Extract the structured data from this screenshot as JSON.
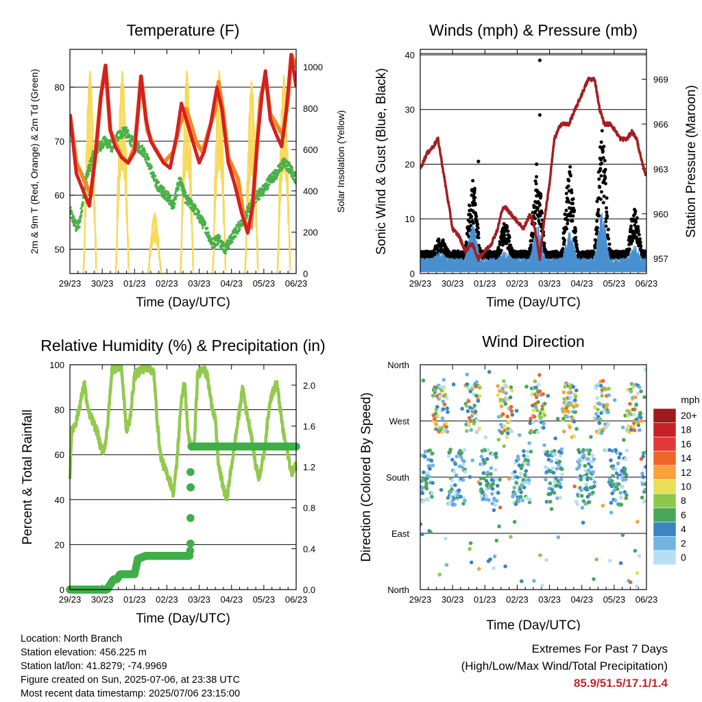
{
  "footer": {
    "location": "Location: North Branch",
    "elevation": "Station elevation: 456.225 m",
    "latlon": "Station lat/lon: 41.8279; -74.9969",
    "created": "Figure created on Sun, 2025-07-06, at 23:38 UTC",
    "recent": "Most recent data timestamp: 2025/07/06 23:15:00"
  },
  "extremes": {
    "line1": "Extremes For Past 7 Days",
    "line2": "(High/Low/Max Wind/Total Precipitation)",
    "values": "85.9/51.5/17.1/1.4"
  },
  "x_ticks": [
    "29/23",
    "30/23",
    "01/23",
    "02/23",
    "03/23",
    "04/23",
    "05/23",
    "06/23"
  ],
  "chart_data": [
    {
      "id": "temperature",
      "type": "line",
      "title": "Temperature (F)",
      "xlabel": "Time (Day/UTC)",
      "ylabel": "2m & 9m T (Red, Orange) & 2m Td (Green)",
      "y2label": "Solar Insolation (Yellow)",
      "ylim": [
        45.5,
        87
      ],
      "yticks": [
        50,
        60,
        70,
        80
      ],
      "y2lim": [
        0,
        1085
      ],
      "y2ticks": [
        0,
        200,
        400,
        600,
        800,
        1000
      ],
      "grid": true,
      "colors": {
        "t2m": "#d42023",
        "t9m": "#f08a24",
        "td": "#4bb04a",
        "solar": "#f7d95a"
      },
      "series": [
        {
          "key": "t9m",
          "values": [
            [
              0,
              75
            ],
            [
              0.2,
              66
            ],
            [
              0.5,
              62
            ],
            [
              0.65,
              60
            ],
            [
              0.8,
              68
            ],
            [
              0.95,
              78
            ],
            [
              1.1,
              84
            ],
            [
              1.25,
              72
            ],
            [
              1.6,
              67
            ],
            [
              1.8,
              66
            ],
            [
              2.0,
              69
            ],
            [
              2.1,
              75
            ],
            [
              2.2,
              82
            ],
            [
              2.4,
              72
            ],
            [
              2.6,
              69
            ],
            [
              2.9,
              66
            ],
            [
              3.2,
              68
            ],
            [
              3.4,
              73
            ],
            [
              3.6,
              76
            ],
            [
              3.7,
              74
            ],
            [
              3.9,
              70
            ],
            [
              4.1,
              68
            ],
            [
              4.3,
              72
            ],
            [
              4.5,
              76
            ],
            [
              4.6,
              81
            ],
            [
              4.75,
              75
            ],
            [
              4.9,
              67
            ],
            [
              5.2,
              63
            ],
            [
              5.4,
              55
            ],
            [
              5.6,
              54
            ],
            [
              5.75,
              66
            ],
            [
              5.9,
              78
            ],
            [
              6.05,
              82
            ],
            [
              6.2,
              75
            ],
            [
              6.4,
              73
            ],
            [
              6.6,
              71
            ],
            [
              6.75,
              78
            ],
            [
              6.85,
              86
            ],
            [
              7,
              84
            ]
          ]
        },
        {
          "key": "t2m",
          "values": [
            [
              0,
              75
            ],
            [
              0.2,
              64
            ],
            [
              0.4,
              61
            ],
            [
              0.6,
              58
            ],
            [
              0.8,
              68
            ],
            [
              0.95,
              78
            ],
            [
              1.1,
              84
            ],
            [
              1.25,
              72
            ],
            [
              1.4,
              69
            ],
            [
              1.6,
              67
            ],
            [
              1.8,
              66
            ],
            [
              2.0,
              68
            ],
            [
              2.1,
              75
            ],
            [
              2.2,
              82
            ],
            [
              2.35,
              74
            ],
            [
              2.5,
              70
            ],
            [
              2.7,
              68
            ],
            [
              2.9,
              66
            ],
            [
              3.1,
              65
            ],
            [
              3.3,
              71
            ],
            [
              3.45,
              77
            ],
            [
              3.6,
              74
            ],
            [
              3.8,
              70
            ],
            [
              4.0,
              66
            ],
            [
              4.15,
              68
            ],
            [
              4.35,
              73
            ],
            [
              4.55,
              80
            ],
            [
              4.7,
              76
            ],
            [
              4.9,
              66
            ],
            [
              5.1,
              62
            ],
            [
              5.3,
              57
            ],
            [
              5.5,
              53
            ],
            [
              5.65,
              58
            ],
            [
              5.8,
              70
            ],
            [
              5.95,
              79
            ],
            [
              6.05,
              83
            ],
            [
              6.2,
              74
            ],
            [
              6.4,
              71
            ],
            [
              6.55,
              69
            ],
            [
              6.7,
              76
            ],
            [
              6.85,
              86
            ],
            [
              7,
              80
            ]
          ]
        },
        {
          "key": "td",
          "values": [
            [
              0,
              57
            ],
            [
              0.2,
              54
            ],
            [
              0.3,
              55
            ],
            [
              0.5,
              63
            ],
            [
              0.7,
              67
            ],
            [
              0.9,
              69
            ],
            [
              1.1,
              70
            ],
            [
              1.3,
              69
            ],
            [
              1.5,
              71
            ],
            [
              1.7,
              72
            ],
            [
              1.9,
              70
            ],
            [
              2.1,
              69
            ],
            [
              2.3,
              68
            ],
            [
              2.5,
              65
            ],
            [
              2.6,
              63
            ],
            [
              2.8,
              61
            ],
            [
              3.0,
              60
            ],
            [
              3.2,
              58
            ],
            [
              3.4,
              63
            ],
            [
              3.6,
              59
            ],
            [
              3.8,
              58
            ],
            [
              4.0,
              56
            ],
            [
              4.2,
              54
            ],
            [
              4.4,
              51
            ],
            [
              4.6,
              52
            ],
            [
              4.8,
              50
            ],
            [
              5.0,
              52
            ],
            [
              5.2,
              54
            ],
            [
              5.4,
              56
            ],
            [
              5.6,
              58
            ],
            [
              5.8,
              60
            ],
            [
              6.0,
              61
            ],
            [
              6.2,
              63
            ],
            [
              6.4,
              64
            ],
            [
              6.6,
              66
            ],
            [
              6.8,
              65
            ],
            [
              7,
              63
            ]
          ]
        },
        {
          "key": "solar",
          "days": [
            0.62,
            1.62,
            2.62,
            3.62,
            4.62,
            5.62,
            6.62
          ],
          "peaks": [
            1000,
            1000,
            300,
            1000,
            1000,
            950,
            980
          ]
        }
      ]
    },
    {
      "id": "winds",
      "type": "scatter",
      "title": "Winds (mph) & Pressure (mb)",
      "xlabel": "Time (Day/UTC)",
      "ylabel": "Sonic Wind & Gust (Blue, Black)",
      "y2label": "Station Pressure (Maroon)",
      "ylim": [
        0,
        41
      ],
      "yticks": [
        0,
        10,
        20,
        30,
        40
      ],
      "y2lim": [
        956,
        971
      ],
      "y2ticks": [
        957,
        960,
        963,
        966,
        969
      ],
      "grid": true,
      "colors": {
        "wind": "#4a90d0",
        "gust": "#000000",
        "pressure": "#a31e22"
      },
      "pressure": [
        [
          0,
          963
        ],
        [
          0.2,
          964
        ],
        [
          0.4,
          964.5
        ],
        [
          0.55,
          965
        ],
        [
          0.7,
          963
        ],
        [
          0.85,
          961
        ],
        [
          1.0,
          959
        ],
        [
          1.2,
          958.5
        ],
        [
          1.4,
          957.5
        ],
        [
          1.6,
          958
        ],
        [
          1.8,
          957
        ],
        [
          2.0,
          957.5
        ],
        [
          2.2,
          958
        ],
        [
          2.4,
          959
        ],
        [
          2.5,
          960
        ],
        [
          2.6,
          960.5
        ],
        [
          2.8,
          960
        ],
        [
          3.0,
          959.5
        ],
        [
          3.2,
          959
        ],
        [
          3.4,
          960
        ],
        [
          3.55,
          959
        ],
        [
          3.7,
          957
        ],
        [
          3.8,
          959
        ],
        [
          4.0,
          962
        ],
        [
          4.15,
          965
        ],
        [
          4.35,
          966
        ],
        [
          4.6,
          966
        ],
        [
          4.8,
          967
        ],
        [
          5.0,
          968
        ],
        [
          5.2,
          969
        ],
        [
          5.4,
          969
        ],
        [
          5.55,
          967
        ],
        [
          5.7,
          966
        ],
        [
          5.9,
          966
        ],
        [
          6.05,
          965.5
        ],
        [
          6.2,
          965
        ],
        [
          6.4,
          965
        ],
        [
          6.55,
          965.5
        ],
        [
          6.7,
          965
        ],
        [
          6.85,
          963.5
        ],
        [
          7,
          962.5
        ]
      ],
      "gust_daily_peaks": [
        4,
        12,
        6,
        14,
        14,
        19,
        8,
        13
      ],
      "wind_daily_peaks": [
        3,
        7,
        3,
        7,
        6,
        9,
        4,
        6
      ],
      "gust_outliers": [
        [
          3.7,
          39
        ],
        [
          3.7,
          29
        ],
        [
          1.8,
          20.5
        ],
        [
          3.6,
          20
        ]
      ]
    },
    {
      "id": "humidity",
      "type": "line",
      "title": "Relative Humidity (%) & Precipitation (in)",
      "xlabel": "Time (Day/UTC)",
      "ylabel": "Percent & Total Rainfall",
      "ylim": [
        0,
        100
      ],
      "yticks": [
        0,
        20,
        40,
        60,
        80,
        100
      ],
      "y2lim": [
        0,
        2.2
      ],
      "y2ticks": [
        "0.0",
        "0.4",
        "0.8",
        "1.2",
        "1.6",
        "2.0"
      ],
      "grid": true,
      "colors": {
        "rh": "#93c94f",
        "precip": "#3fae49"
      },
      "rh": [
        [
          0,
          50
        ],
        [
          0.05,
          70
        ],
        [
          0.2,
          75
        ],
        [
          0.35,
          85
        ],
        [
          0.45,
          92
        ],
        [
          0.55,
          80
        ],
        [
          0.7,
          75
        ],
        [
          0.85,
          70
        ],
        [
          0.95,
          63
        ],
        [
          1.05,
          62
        ],
        [
          1.15,
          70
        ],
        [
          1.3,
          98
        ],
        [
          1.5,
          99
        ],
        [
          1.6,
          98
        ],
        [
          1.75,
          70
        ],
        [
          1.85,
          75
        ],
        [
          2.0,
          95
        ],
        [
          2.2,
          98
        ],
        [
          2.45,
          99
        ],
        [
          2.6,
          96
        ],
        [
          2.7,
          75
        ],
        [
          2.8,
          60
        ],
        [
          2.9,
          55
        ],
        [
          3.1,
          48
        ],
        [
          3.2,
          43
        ],
        [
          3.3,
          55
        ],
        [
          3.45,
          85
        ],
        [
          3.55,
          92
        ],
        [
          3.65,
          70
        ],
        [
          3.75,
          62
        ],
        [
          3.85,
          65
        ],
        [
          3.95,
          95
        ],
        [
          4.1,
          99
        ],
        [
          4.25,
          95
        ],
        [
          4.35,
          85
        ],
        [
          4.5,
          75
        ],
        [
          4.6,
          55
        ],
        [
          4.75,
          45
        ],
        [
          4.85,
          40
        ],
        [
          5.0,
          55
        ],
        [
          5.2,
          75
        ],
        [
          5.35,
          90
        ],
        [
          5.45,
          80
        ],
        [
          5.6,
          70
        ],
        [
          5.75,
          55
        ],
        [
          5.85,
          50
        ],
        [
          6.0,
          60
        ],
        [
          6.2,
          85
        ],
        [
          6.4,
          92
        ],
        [
          6.6,
          70
        ],
        [
          6.75,
          60
        ],
        [
          6.85,
          52
        ],
        [
          7,
          55
        ]
      ],
      "precip": [
        [
          0,
          0
        ],
        [
          1.15,
          0
        ],
        [
          1.35,
          0.1
        ],
        [
          1.45,
          0.1
        ],
        [
          1.55,
          0.15
        ],
        [
          2.0,
          0.15
        ],
        [
          2.1,
          0.3
        ],
        [
          2.35,
          0.33
        ],
        [
          3.7,
          0.33
        ],
        [
          3.72,
          0.38
        ],
        [
          3.73,
          0.7
        ],
        [
          3.74,
          1.0
        ],
        [
          3.75,
          1.15
        ],
        [
          3.76,
          1.4
        ],
        [
          7,
          1.4
        ]
      ]
    },
    {
      "id": "direction",
      "type": "scatter",
      "title": "Wind Direction",
      "xlabel": "Time (Day/UTC)",
      "ylabel": "Direction (Colored By Speed)",
      "yticks": [
        "North",
        "West",
        "South",
        "East",
        "North"
      ],
      "ylim": [
        0,
        360
      ],
      "grid": true,
      "legend": {
        "title": "mph",
        "placement": "right",
        "labels": [
          "20+",
          "18",
          "16",
          "14",
          "12",
          "10",
          "8",
          "6",
          "4",
          "2",
          "0"
        ],
        "colors": [
          "#9e1a1c",
          "#c52228",
          "#e2383a",
          "#f06529",
          "#f9a23c",
          "#e8de57",
          "#8cc84b",
          "#4aa75a",
          "#3a85c2",
          "#72b3e0",
          "#b6dff5"
        ]
      }
    }
  ]
}
